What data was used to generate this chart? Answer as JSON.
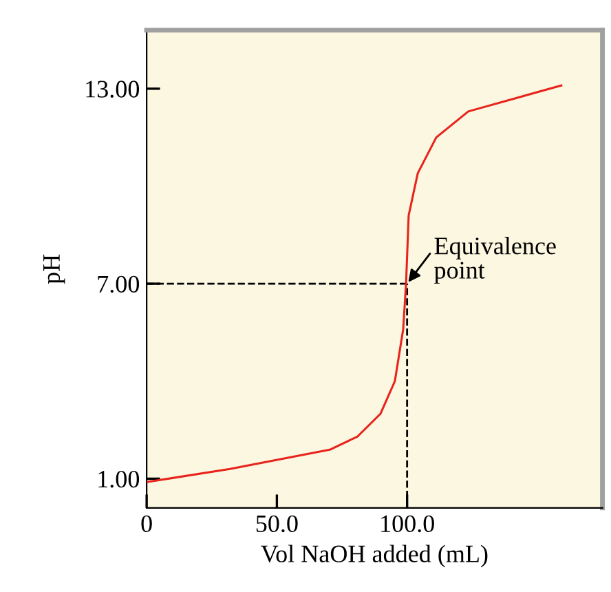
{
  "chart_data": {
    "type": "line",
    "xlabel": "Vol NaOH added (mL)",
    "ylabel": "pH",
    "series": [
      {
        "color": "#e8231c",
        "x": [
          0.4,
          32.0,
          70.6,
          81.0,
          89.8,
          95.3,
          98.5,
          99.6,
          100.6,
          104.1,
          111.2,
          123.5,
          159.2
        ],
        "values": [
          0.9,
          1.3,
          1.9,
          2.3,
          3.0,
          4.0,
          5.6,
          7.0,
          9.1,
          10.4,
          11.5,
          12.3,
          13.1
        ]
      }
    ],
    "xlim": [
      0,
      175
    ],
    "xticks": [
      0,
      {
        "value": 50,
        "label": "50.0"
      },
      {
        "value": 100,
        "label": "100.0"
      }
    ],
    "ylim": [
      0.1,
      14.8
    ],
    "yticks": [
      {
        "value": 1,
        "label": "1.00"
      },
      {
        "value": 7,
        "label": "7.00"
      },
      {
        "value": 13,
        "label": "13.00"
      }
    ],
    "ref_lines": [
      {
        "axis": "y",
        "value": 7,
        "line_style": "dashed",
        "color": "#000000"
      },
      {
        "axis": "x",
        "value": 100,
        "line_style": "dashed",
        "color": "#000000"
      }
    ],
    "annotations": [
      {
        "text": "Equivalence\npoint",
        "x": 100,
        "y": 7
      }
    ],
    "grid": false,
    "legend": false,
    "marker": "none",
    "line_style": "solid"
  }
}
